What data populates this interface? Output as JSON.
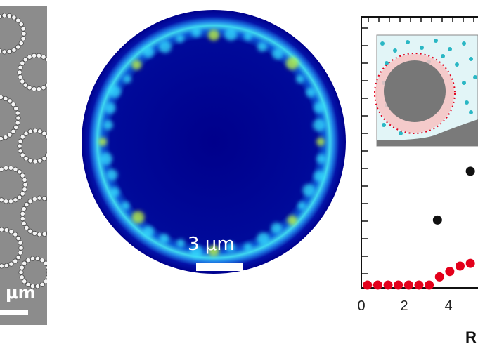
{
  "left_panel": {
    "scale_bar_label": "μm"
  },
  "middle_panel": {
    "scale_bar_label": "3 μm"
  },
  "right_panel": {
    "chart_data": {
      "type": "scatter",
      "x_tick_labels": [
        "0",
        "2",
        "4"
      ],
      "xlabel": "R",
      "xlim": [
        0,
        5.5
      ],
      "series": [
        {
          "color": "#e3001b",
          "x": [
            0.3,
            0.8,
            1.3,
            1.8,
            2.3,
            2.8,
            3.3,
            3.8,
            4.3,
            4.8,
            5.3
          ],
          "y": [
            0,
            0,
            0,
            0,
            0,
            0,
            0,
            0.03,
            0.05,
            0.07,
            0.08
          ]
        },
        {
          "color": "#111111",
          "x": [
            3.7,
            5.3
          ],
          "y": [
            0.24,
            0.42
          ]
        }
      ]
    },
    "inset": {
      "description_colors": {
        "background": "#dff4f7",
        "dot": "#2ab7c4",
        "sphere": "#777777",
        "halo": "#f4a6a6",
        "red_dot": "#e3001b"
      }
    }
  }
}
